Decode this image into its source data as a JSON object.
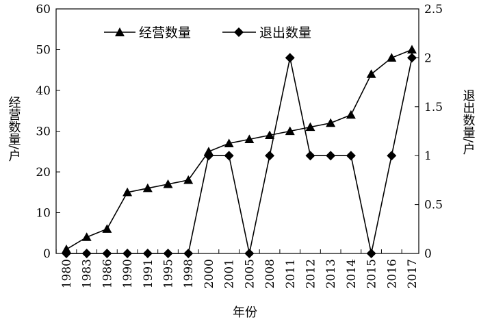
{
  "chart_data": {
    "type": "line",
    "categories": [
      "1980",
      "1983",
      "1986",
      "1990",
      "1991",
      "1995",
      "1998",
      "2000",
      "2001",
      "2005",
      "2008",
      "2011",
      "2012",
      "2013",
      "2014",
      "2015",
      "2016",
      "2017"
    ],
    "series": [
      {
        "name": "经营数量",
        "axis": "left",
        "marker": "triangle",
        "values": [
          1,
          4,
          6,
          15,
          16,
          17,
          18,
          25,
          27,
          28,
          29,
          30,
          31,
          32,
          34,
          44,
          48,
          50
        ]
      },
      {
        "name": "退出数量",
        "axis": "right",
        "marker": "diamond",
        "values": [
          0,
          0,
          0,
          0,
          0,
          0,
          0,
          1,
          1,
          0,
          1,
          2,
          1,
          1,
          1,
          0,
          1,
          2
        ]
      }
    ],
    "xlabel": "年份",
    "ylabel_left": "经营数量/户",
    "ylabel_right": "退出数量/户",
    "ylim_left": [
      0,
      60
    ],
    "yticks_left": [
      "0",
      "10",
      "20",
      "30",
      "40",
      "50",
      "60"
    ],
    "ylim_right": [
      0,
      2.5
    ],
    "yticks_right": [
      "0",
      "0.5",
      "1",
      "1.5",
      "2",
      "2.5"
    ],
    "grid": false,
    "legend_position": "top"
  }
}
